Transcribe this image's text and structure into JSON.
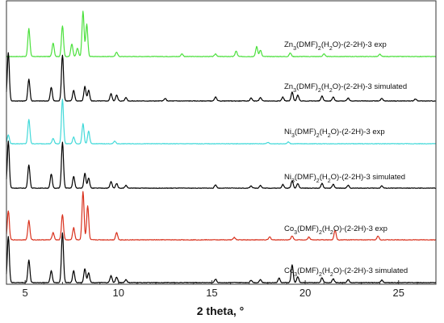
{
  "chart_data": {
    "type": "line",
    "xlabel": "2 theta, °",
    "ylabel": "",
    "xlim": [
      4,
      27
    ],
    "xticks": [
      5,
      10,
      15,
      20,
      25
    ],
    "grid": false,
    "series": [
      {
        "name": "Zn3(DMF)2(H2O)-(2-2H)-3 exp",
        "label": {
          "pre": "Zn",
          "sub1": "3",
          "mid1": "(DMF)",
          "sub2": "2",
          "mid2": "(H",
          "sub3": "2",
          "post": "O)-(2-2H)-3 exp"
        },
        "color": "#4be03c",
        "peaks": [
          [
            5.2,
            0.62
          ],
          [
            6.5,
            0.3
          ],
          [
            7.0,
            0.68
          ],
          [
            7.5,
            0.28
          ],
          [
            7.8,
            0.18
          ],
          [
            8.1,
            1.0
          ],
          [
            8.3,
            0.72
          ],
          [
            9.9,
            0.1
          ],
          [
            13.4,
            0.06
          ],
          [
            15.2,
            0.06
          ],
          [
            16.3,
            0.12
          ],
          [
            17.4,
            0.22
          ],
          [
            17.6,
            0.14
          ],
          [
            19.2,
            0.08
          ],
          [
            21.0,
            0.06
          ],
          [
            24.0,
            0.05
          ]
        ]
      },
      {
        "name": "Zn3(DMF)2(H2O)-(2-2H)-3 simulated",
        "label": {
          "pre": "Zn",
          "sub1": "3",
          "mid1": "(DMF)",
          "sub2": "2",
          "mid2": "(H",
          "sub3": "2",
          "post": "O)-(2-2H)-3  simulated"
        },
        "color": "#000000",
        "peaks": [
          [
            4.1,
            1.0
          ],
          [
            5.2,
            0.45
          ],
          [
            6.4,
            0.28
          ],
          [
            7.0,
            0.95
          ],
          [
            7.6,
            0.22
          ],
          [
            8.2,
            0.3
          ],
          [
            8.4,
            0.22
          ],
          [
            9.6,
            0.15
          ],
          [
            9.9,
            0.12
          ],
          [
            10.4,
            0.07
          ],
          [
            12.5,
            0.05
          ],
          [
            15.2,
            0.08
          ],
          [
            17.1,
            0.06
          ],
          [
            17.6,
            0.07
          ],
          [
            18.8,
            0.08
          ],
          [
            19.3,
            0.18
          ],
          [
            19.6,
            0.12
          ],
          [
            20.9,
            0.1
          ],
          [
            21.5,
            0.08
          ],
          [
            22.3,
            0.06
          ],
          [
            24.1,
            0.05
          ],
          [
            25.9,
            0.04
          ]
        ]
      },
      {
        "name": "Ni3(DMF)2(H2O)-(2-2H)-3 exp",
        "label": {
          "pre": "Ni",
          "sub1": "3",
          "mid1": "(DMF)",
          "sub2": "2",
          "mid2": "(H",
          "sub3": "2",
          "post": "O)-(2-2H)-3 exp"
        },
        "color": "#42d9d9",
        "peaks": [
          [
            4.1,
            0.2
          ],
          [
            5.2,
            0.55
          ],
          [
            6.5,
            0.12
          ],
          [
            7.0,
            1.0
          ],
          [
            7.6,
            0.15
          ],
          [
            8.1,
            0.45
          ],
          [
            8.4,
            0.28
          ],
          [
            9.8,
            0.06
          ],
          [
            18.0,
            0.03
          ],
          [
            19.1,
            0.04
          ]
        ]
      },
      {
        "name": "Ni3(DMF)2(H2O)-(2-2H)-3 simulated",
        "label": {
          "pre": "Ni",
          "sub1": "3",
          "mid1": "(DMF)",
          "sub2": "2",
          "mid2": "(H",
          "sub3": "2",
          "post": "O)-(2-2H)-3  simulated"
        },
        "color": "#000000",
        "peaks": [
          [
            4.1,
            1.0
          ],
          [
            5.2,
            0.5
          ],
          [
            6.4,
            0.3
          ],
          [
            7.0,
            0.98
          ],
          [
            7.6,
            0.25
          ],
          [
            8.2,
            0.32
          ],
          [
            8.4,
            0.22
          ],
          [
            9.6,
            0.14
          ],
          [
            9.9,
            0.1
          ],
          [
            10.4,
            0.06
          ],
          [
            15.2,
            0.07
          ],
          [
            17.1,
            0.05
          ],
          [
            17.6,
            0.06
          ],
          [
            18.8,
            0.08
          ],
          [
            19.3,
            0.16
          ],
          [
            19.6,
            0.1
          ],
          [
            20.9,
            0.1
          ],
          [
            21.5,
            0.08
          ],
          [
            22.3,
            0.06
          ],
          [
            24.1,
            0.05
          ]
        ]
      },
      {
        "name": "Co3(DMF)2(H2O)-(2-2H)-3 exp",
        "label": {
          "pre": "Co",
          "sub1": "3",
          "mid1": "(DMF)",
          "sub2": "2",
          "mid2": "(H",
          "sub3": "2",
          "post": "O)-(2-2H)-3  exp"
        },
        "color": "#d9321e",
        "peaks": [
          [
            4.1,
            0.6
          ],
          [
            5.2,
            0.4
          ],
          [
            6.5,
            0.15
          ],
          [
            7.0,
            0.52
          ],
          [
            7.6,
            0.25
          ],
          [
            8.1,
            1.0
          ],
          [
            8.35,
            0.7
          ],
          [
            9.9,
            0.15
          ],
          [
            16.2,
            0.05
          ],
          [
            18.1,
            0.06
          ],
          [
            19.3,
            0.08
          ],
          [
            20.2,
            0.06
          ],
          [
            21.6,
            0.2
          ],
          [
            23.9,
            0.08
          ]
        ]
      },
      {
        "name": "Co3(DMF)2(H2O)-(2-2H)-3 simulated",
        "label": {
          "pre": "Co",
          "sub1": "3",
          "mid1": "(DMF)",
          "sub2": "2",
          "mid2": "(H",
          "sub3": "2",
          "post": "O)-(2-2H)-3  simulated"
        },
        "color": "#000000",
        "peaks": [
          [
            4.1,
            0.92
          ],
          [
            5.2,
            0.45
          ],
          [
            6.4,
            0.24
          ],
          [
            7.0,
            1.0
          ],
          [
            7.6,
            0.24
          ],
          [
            8.2,
            0.28
          ],
          [
            8.4,
            0.2
          ],
          [
            9.6,
            0.14
          ],
          [
            9.9,
            0.11
          ],
          [
            10.4,
            0.06
          ],
          [
            15.2,
            0.07
          ],
          [
            17.1,
            0.05
          ],
          [
            17.6,
            0.06
          ],
          [
            18.6,
            0.09
          ],
          [
            19.3,
            0.35
          ],
          [
            19.6,
            0.12
          ],
          [
            20.9,
            0.1
          ],
          [
            21.5,
            0.08
          ],
          [
            22.3,
            0.06
          ],
          [
            24.1,
            0.05
          ]
        ]
      }
    ]
  }
}
